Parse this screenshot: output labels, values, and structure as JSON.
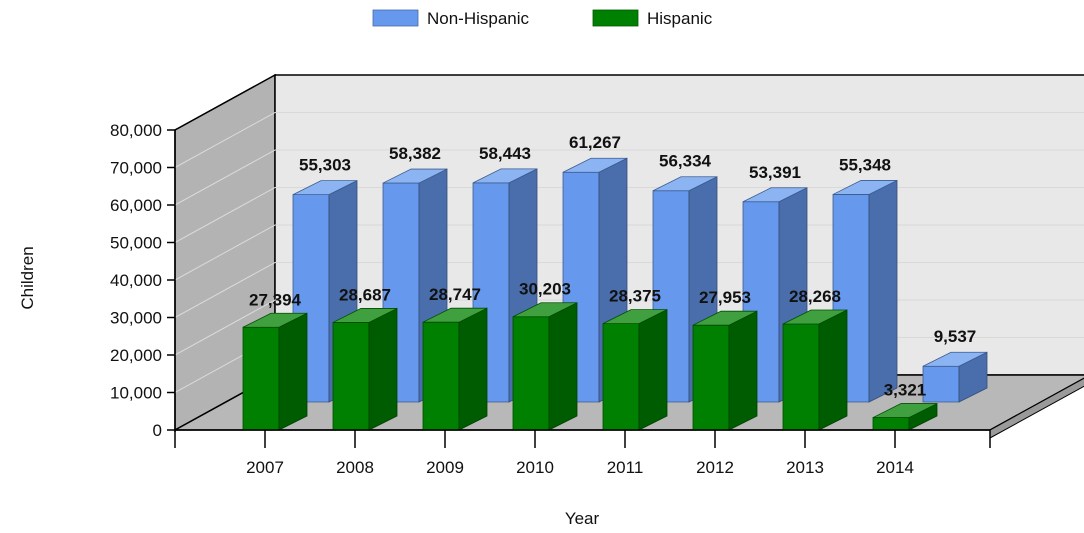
{
  "chart_data": {
    "type": "bar",
    "three_d": true,
    "categories": [
      "2007",
      "2008",
      "2009",
      "2010",
      "2011",
      "2012",
      "2013",
      "2014"
    ],
    "series": [
      {
        "name": "Non-Hispanic",
        "color": "#6699EE",
        "values": [
          55303,
          58382,
          58443,
          61267,
          56334,
          53391,
          55348,
          9537
        ],
        "labels": [
          "55,303",
          "58,382",
          "58,443",
          "61,267",
          "56,334",
          "53,391",
          "55,348",
          "9,537"
        ]
      },
      {
        "name": "Hispanic",
        "color": "#008000",
        "values": [
          27394,
          28687,
          28747,
          30203,
          28375,
          27953,
          28268,
          3321
        ],
        "labels": [
          "27,394",
          "28,687",
          "28,747",
          "30,203",
          "28,375",
          "27,953",
          "28,268",
          "3,321"
        ]
      }
    ],
    "xlabel": "Year",
    "ylabel": "Children",
    "ylim": [
      0,
      80000
    ],
    "yticks": [
      0,
      10000,
      20000,
      30000,
      40000,
      50000,
      60000,
      70000,
      80000
    ],
    "ytick_labels": [
      "0",
      "10,000",
      "20,000",
      "30,000",
      "40,000",
      "50,000",
      "60,000",
      "70,000",
      "80,000"
    ],
    "grid": true,
    "legend_position": "top-center"
  }
}
